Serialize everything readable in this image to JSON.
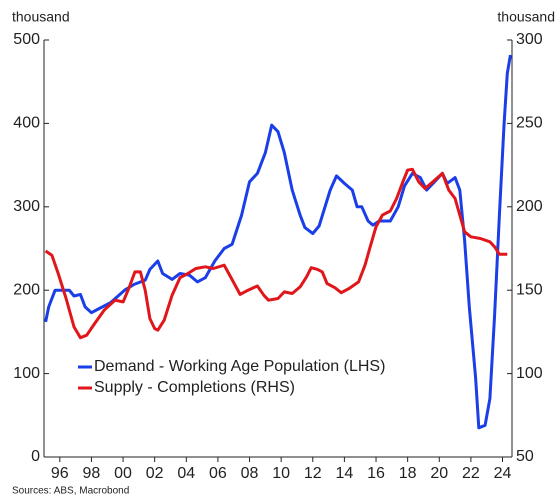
{
  "chart_data": {
    "type": "line",
    "y_label": "thousand",
    "y2_label": "thousand",
    "source": "Sources: ABS, Macrobond",
    "xlim": [
      1995,
      2024.6
    ],
    "xticks": [
      {
        "value": 1996,
        "label": "96"
      },
      {
        "value": 1998,
        "label": "98"
      },
      {
        "value": 2000,
        "label": "00"
      },
      {
        "value": 2002,
        "label": "02"
      },
      {
        "value": 2004,
        "label": "04"
      },
      {
        "value": 2006,
        "label": "06"
      },
      {
        "value": 2008,
        "label": "08"
      },
      {
        "value": 2010,
        "label": "10"
      },
      {
        "value": 2012,
        "label": "12"
      },
      {
        "value": 2014,
        "label": "14"
      },
      {
        "value": 2016,
        "label": "16"
      },
      {
        "value": 2018,
        "label": "18"
      },
      {
        "value": 2020,
        "label": "20"
      },
      {
        "value": 2022,
        "label": "22"
      },
      {
        "value": 2024,
        "label": "24"
      }
    ],
    "ylim": [
      0,
      500
    ],
    "yticks": [
      0,
      100,
      200,
      300,
      400,
      500
    ],
    "y2lim": [
      50,
      300
    ],
    "y2ticks": [
      50,
      100,
      150,
      200,
      250,
      300
    ],
    "grid": false,
    "legend": "lower left",
    "series": [
      {
        "name": "Demand - Working Age Population (LHS)",
        "color": "#1a3ee8",
        "x": [
          1995.1,
          1995.3,
          1995.7,
          1996.6,
          1996.9,
          1997.3,
          1997.6,
          1998.0,
          1998.5,
          1999.2,
          2000.1,
          2000.7,
          2001.4,
          2001.7,
          2002.2,
          2002.5,
          2003.1,
          2003.6,
          2004.2,
          2004.7,
          2005.2,
          2005.8,
          2006.4,
          2006.9,
          2007.5,
          2008.0,
          2008.5,
          2009.0,
          2009.4,
          2009.8,
          2010.2,
          2010.7,
          2011.2,
          2011.5,
          2012.0,
          2012.4,
          2013.1,
          2013.5,
          2014.0,
          2014.5,
          2014.8,
          2015.1,
          2015.5,
          2015.8,
          2016.2,
          2016.9,
          2017.4,
          2017.8,
          2018.3,
          2018.8,
          2019.2,
          2019.7,
          2020.2,
          2020.5,
          2021.0,
          2021.3,
          2021.6,
          2021.9,
          2022.3,
          2022.5,
          2022.9,
          2023.2,
          2023.5,
          2023.8,
          2024.1,
          2024.3,
          2024.5
        ],
        "values": [
          162,
          180,
          200,
          200,
          193,
          195,
          180,
          173,
          178,
          185,
          200,
          207,
          212,
          225,
          235,
          220,
          213,
          220,
          218,
          210,
          215,
          235,
          250,
          255,
          290,
          330,
          340,
          365,
          398,
          390,
          365,
          320,
          290,
          275,
          268,
          277,
          320,
          337,
          328,
          320,
          300,
          300,
          283,
          278,
          283,
          283,
          300,
          325,
          340,
          335,
          320,
          330,
          340,
          328,
          335,
          320,
          260,
          180,
          95,
          35,
          38,
          70,
          170,
          290,
          400,
          460,
          482
        ]
      },
      {
        "name": "Supply - Completions (RHS)",
        "color": "#e0161b",
        "axis": "y2",
        "x": [
          1995.1,
          1995.5,
          1995.9,
          1996.4,
          1996.9,
          1997.3,
          1997.7,
          1998.2,
          1998.8,
          1999.5,
          2000.0,
          2000.4,
          2000.75,
          2001.1,
          2001.4,
          2001.7,
          2002.0,
          2002.2,
          2002.6,
          2003.1,
          2003.6,
          2004.1,
          2004.6,
          2005.2,
          2005.7,
          2006.4,
          2006.8,
          2007.4,
          2007.9,
          2008.5,
          2008.9,
          2009.2,
          2009.8,
          2010.2,
          2010.7,
          2011.2,
          2011.6,
          2011.9,
          2012.3,
          2012.6,
          2012.9,
          2013.4,
          2013.8,
          2014.3,
          2014.9,
          2015.3,
          2015.6,
          2016.0,
          2016.4,
          2016.9,
          2017.3,
          2017.7,
          2018.0,
          2018.3,
          2018.7,
          2019.1,
          2019.6,
          2020.2,
          2020.6,
          2021.0,
          2021.3,
          2021.6,
          2022.0,
          2022.6,
          2023.2,
          2023.5,
          2023.8,
          2024.3
        ],
        "values": [
          173.5,
          171,
          160,
          145,
          128,
          121.5,
          123,
          130,
          138,
          144,
          143,
          152,
          161,
          161,
          150,
          133,
          127,
          126,
          132,
          147,
          157.5,
          160,
          163,
          164,
          163,
          165,
          158,
          147.5,
          150,
          152.5,
          147,
          144,
          145,
          149,
          148,
          152,
          158,
          163.5,
          162.5,
          161,
          154,
          151.5,
          148.5,
          151,
          155,
          165,
          175,
          188,
          195,
          197.5,
          205,
          215,
          222,
          222.5,
          215,
          211,
          215,
          220,
          210,
          205,
          195,
          185,
          182,
          181,
          179,
          176,
          171.5,
          171.5
        ]
      }
    ]
  }
}
